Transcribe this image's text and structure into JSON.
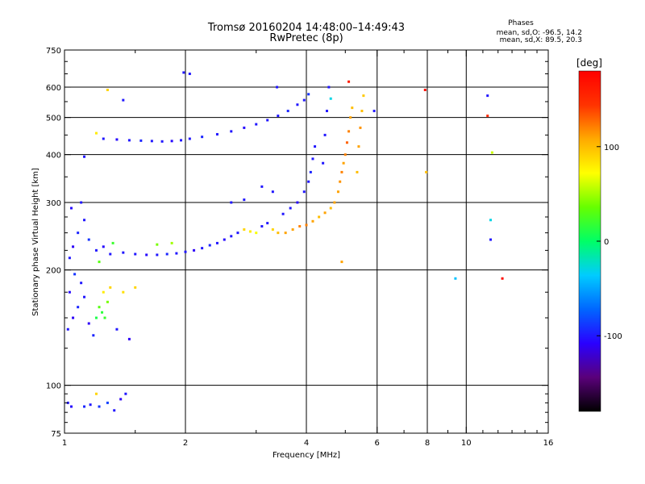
{
  "header": {
    "title": "Tromsø 20160204 14:48:00–14:49:43",
    "subtitle": "RwPretec (8p)",
    "phases_label": "Phases",
    "stats_o": "mean, sd,O: -96.5, 14.2",
    "stats_x": "mean, sd,X: 89.5, 20.3"
  },
  "colorbar": {
    "unit_label": "[deg]",
    "ticks": [
      {
        "value": 100,
        "label": "100"
      },
      {
        "value": 0,
        "label": "0"
      },
      {
        "value": -100,
        "label": "-100"
      }
    ],
    "range": [
      -180,
      180
    ],
    "colors": [
      "#000000",
      "#5a007a",
      "#2a00ff",
      "#0066ff",
      "#00ccff",
      "#00ff66",
      "#66ff00",
      "#ffff00",
      "#ffaa00",
      "#ff3300",
      "#ff0000"
    ]
  },
  "chart_data": {
    "type": "scatter",
    "title": "Tromsø 20160204 14:48:00–14:49:43",
    "subtitle": "RwPretec (8p)",
    "xlabel": "Frequency [MHz]",
    "ylabel": "Stationary phase Virtual Height [km]",
    "xscale": "log2",
    "yscale": "log",
    "xlim": [
      1,
      16
    ],
    "ylim": [
      75,
      750
    ],
    "xticks": [
      {
        "value": 1,
        "label": "1"
      },
      {
        "value": 2,
        "label": "2"
      },
      {
        "value": 4,
        "label": "4"
      },
      {
        "value": 6,
        "label": "6"
      },
      {
        "value": 8,
        "label": "8"
      },
      {
        "value": 10,
        "label": "10"
      },
      {
        "value": 16,
        "label": "16"
      }
    ],
    "xminor": [
      1.5,
      3,
      5,
      7,
      9,
      11,
      12,
      13,
      14,
      15
    ],
    "xgrid": [
      2,
      4,
      6,
      8,
      10
    ],
    "yticks": [
      {
        "value": 75,
        "label": "75"
      },
      {
        "value": 100,
        "label": "100"
      },
      {
        "value": 200,
        "label": "200"
      },
      {
        "value": 300,
        "label": "300"
      },
      {
        "value": 400,
        "label": "400"
      },
      {
        "value": 500,
        "label": "500"
      },
      {
        "value": 600,
        "label": "600"
      },
      {
        "value": 750,
        "label": "750"
      }
    ],
    "yminor": [
      80,
      85,
      90,
      95,
      125,
      150,
      175,
      225,
      250,
      275,
      350,
      450,
      550,
      650,
      700
    ],
    "ygrid": [
      100,
      200,
      300,
      400,
      500,
      600
    ],
    "grid": true,
    "color_scale": "phase [deg]",
    "series": [
      {
        "points": [
          {
            "f": 1.02,
            "h": 90,
            "p": -100
          },
          {
            "f": 1.04,
            "h": 88,
            "p": -105
          },
          {
            "f": 1.12,
            "h": 88,
            "p": -95
          },
          {
            "f": 1.16,
            "h": 89,
            "p": -100
          },
          {
            "f": 1.22,
            "h": 88,
            "p": -90
          },
          {
            "f": 1.28,
            "h": 90,
            "p": -85
          },
          {
            "f": 1.38,
            "h": 92,
            "p": -110
          },
          {
            "f": 1.33,
            "h": 86,
            "p": -100
          },
          {
            "f": 1.02,
            "h": 140,
            "p": -100
          },
          {
            "f": 1.05,
            "h": 150,
            "p": -110
          },
          {
            "f": 1.08,
            "h": 160,
            "p": -95
          },
          {
            "f": 1.03,
            "h": 175,
            "p": -105
          },
          {
            "f": 1.1,
            "h": 185,
            "p": -100
          },
          {
            "f": 1.06,
            "h": 195,
            "p": -90
          },
          {
            "f": 1.12,
            "h": 170,
            "p": -100
          },
          {
            "f": 1.15,
            "h": 145,
            "p": -110
          },
          {
            "f": 1.18,
            "h": 135,
            "p": -95
          },
          {
            "f": 1.2,
            "h": 150,
            "p": 10
          },
          {
            "f": 1.22,
            "h": 160,
            "p": 30
          },
          {
            "f": 1.24,
            "h": 155,
            "p": 15
          },
          {
            "f": 1.26,
            "h": 150,
            "p": 20
          },
          {
            "f": 1.28,
            "h": 165,
            "p": 40
          },
          {
            "f": 1.25,
            "h": 175,
            "p": 80
          },
          {
            "f": 1.3,
            "h": 180,
            "p": 90
          },
          {
            "f": 1.35,
            "h": 140,
            "p": -100
          },
          {
            "f": 1.4,
            "h": 175,
            "p": 85
          },
          {
            "f": 1.45,
            "h": 132,
            "p": -110
          },
          {
            "f": 1.5,
            "h": 180,
            "p": 90
          },
          {
            "f": 1.03,
            "h": 215,
            "p": -100
          },
          {
            "f": 1.05,
            "h": 230,
            "p": -110
          },
          {
            "f": 1.08,
            "h": 250,
            "p": -95
          },
          {
            "f": 1.12,
            "h": 270,
            "p": -100
          },
          {
            "f": 1.04,
            "h": 290,
            "p": -105
          },
          {
            "f": 1.1,
            "h": 300,
            "p": -100
          },
          {
            "f": 1.15,
            "h": 240,
            "p": -90
          },
          {
            "f": 1.2,
            "h": 225,
            "p": -100
          },
          {
            "f": 1.25,
            "h": 230,
            "p": -105
          },
          {
            "f": 1.3,
            "h": 220,
            "p": -100
          },
          {
            "f": 1.22,
            "h": 210,
            "p": 30
          },
          {
            "f": 1.32,
            "h": 235,
            "p": 20
          },
          {
            "f": 1.4,
            "h": 222,
            "p": -100
          },
          {
            "f": 1.5,
            "h": 220,
            "p": -100
          },
          {
            "f": 1.6,
            "h": 219,
            "p": -105
          },
          {
            "f": 1.7,
            "h": 219,
            "p": -100
          },
          {
            "f": 1.8,
            "h": 220,
            "p": -95
          },
          {
            "f": 1.9,
            "h": 221,
            "p": -100
          },
          {
            "f": 2.0,
            "h": 223,
            "p": -100
          },
          {
            "f": 2.1,
            "h": 225,
            "p": -110
          },
          {
            "f": 2.2,
            "h": 228,
            "p": -100
          },
          {
            "f": 2.3,
            "h": 232,
            "p": -95
          },
          {
            "f": 2.4,
            "h": 235,
            "p": -100
          },
          {
            "f": 2.5,
            "h": 240,
            "p": -105
          },
          {
            "f": 1.7,
            "h": 233,
            "p": 40
          },
          {
            "f": 1.85,
            "h": 235,
            "p": 50
          },
          {
            "f": 2.6,
            "h": 245,
            "p": -100
          },
          {
            "f": 2.7,
            "h": 250,
            "p": -100
          },
          {
            "f": 2.8,
            "h": 255,
            "p": 90
          },
          {
            "f": 2.9,
            "h": 252,
            "p": 80
          },
          {
            "f": 3.0,
            "h": 250,
            "p": 70
          },
          {
            "f": 3.1,
            "h": 260,
            "p": -100
          },
          {
            "f": 3.2,
            "h": 265,
            "p": -100
          },
          {
            "f": 3.3,
            "h": 255,
            "p": 90
          },
          {
            "f": 3.4,
            "h": 250,
            "p": 100
          },
          {
            "f": 3.55,
            "h": 250,
            "p": 110
          },
          {
            "f": 3.7,
            "h": 255,
            "p": 110
          },
          {
            "f": 3.85,
            "h": 260,
            "p": 120
          },
          {
            "f": 4.0,
            "h": 262,
            "p": 120
          },
          {
            "f": 4.15,
            "h": 268,
            "p": 110
          },
          {
            "f": 4.3,
            "h": 275,
            "p": 100
          },
          {
            "f": 4.45,
            "h": 282,
            "p": 110
          },
          {
            "f": 4.6,
            "h": 290,
            "p": 100
          },
          {
            "f": 4.7,
            "h": 300,
            "p": 110
          },
          {
            "f": 3.5,
            "h": 280,
            "p": -100
          },
          {
            "f": 3.65,
            "h": 290,
            "p": -100
          },
          {
            "f": 3.8,
            "h": 300,
            "p": -105
          },
          {
            "f": 3.95,
            "h": 320,
            "p": -100
          },
          {
            "f": 4.05,
            "h": 340,
            "p": -100
          },
          {
            "f": 4.1,
            "h": 360,
            "p": -95
          },
          {
            "f": 4.15,
            "h": 390,
            "p": -100
          },
          {
            "f": 4.2,
            "h": 420,
            "p": -100
          },
          {
            "f": 3.3,
            "h": 320,
            "p": -100
          },
          {
            "f": 3.1,
            "h": 330,
            "p": -100
          },
          {
            "f": 2.8,
            "h": 305,
            "p": -100
          },
          {
            "f": 2.6,
            "h": 300,
            "p": -100
          },
          {
            "f": 4.8,
            "h": 320,
            "p": 110
          },
          {
            "f": 4.85,
            "h": 340,
            "p": 115
          },
          {
            "f": 4.9,
            "h": 360,
            "p": 120
          },
          {
            "f": 4.95,
            "h": 380,
            "p": 110
          },
          {
            "f": 5.0,
            "h": 400,
            "p": 120
          },
          {
            "f": 5.05,
            "h": 430,
            "p": 130
          },
          {
            "f": 5.1,
            "h": 460,
            "p": 120
          },
          {
            "f": 5.15,
            "h": 500,
            "p": 110
          },
          {
            "f": 5.2,
            "h": 530,
            "p": 100
          },
          {
            "f": 5.35,
            "h": 360,
            "p": 100
          },
          {
            "f": 5.4,
            "h": 420,
            "p": 110
          },
          {
            "f": 5.45,
            "h": 470,
            "p": 115
          },
          {
            "f": 5.5,
            "h": 520,
            "p": 100
          },
          {
            "f": 5.55,
            "h": 570,
            "p": 95
          },
          {
            "f": 4.4,
            "h": 380,
            "p": -100
          },
          {
            "f": 4.45,
            "h": 450,
            "p": -100
          },
          {
            "f": 4.5,
            "h": 520,
            "p": -100
          },
          {
            "f": 4.55,
            "h": 600,
            "p": -100
          },
          {
            "f": 4.6,
            "h": 560,
            "p": -30
          },
          {
            "f": 1.25,
            "h": 440,
            "p": -100
          },
          {
            "f": 1.35,
            "h": 438,
            "p": -105
          },
          {
            "f": 1.45,
            "h": 436,
            "p": -100
          },
          {
            "f": 1.55,
            "h": 435,
            "p": -95
          },
          {
            "f": 1.65,
            "h": 434,
            "p": -100
          },
          {
            "f": 1.75,
            "h": 433,
            "p": -100
          },
          {
            "f": 1.85,
            "h": 434,
            "p": -105
          },
          {
            "f": 1.95,
            "h": 436,
            "p": -100
          },
          {
            "f": 2.05,
            "h": 440,
            "p": -100
          },
          {
            "f": 2.2,
            "h": 445,
            "p": -95
          },
          {
            "f": 2.4,
            "h": 452,
            "p": -100
          },
          {
            "f": 2.6,
            "h": 460,
            "p": -100
          },
          {
            "f": 2.8,
            "h": 470,
            "p": -105
          },
          {
            "f": 3.0,
            "h": 480,
            "p": -100
          },
          {
            "f": 3.2,
            "h": 492,
            "p": -100
          },
          {
            "f": 3.4,
            "h": 505,
            "p": -100
          },
          {
            "f": 3.6,
            "h": 520,
            "p": -95
          },
          {
            "f": 3.8,
            "h": 540,
            "p": -100
          },
          {
            "f": 3.95,
            "h": 555,
            "p": -100
          },
          {
            "f": 4.05,
            "h": 575,
            "p": -90
          },
          {
            "f": 1.2,
            "h": 455,
            "p": 80
          },
          {
            "f": 1.28,
            "h": 590,
            "p": 90
          },
          {
            "f": 1.12,
            "h": 395,
            "p": -100
          },
          {
            "f": 1.4,
            "h": 555,
            "p": -100
          },
          {
            "f": 1.98,
            "h": 655,
            "p": -100
          },
          {
            "f": 2.05,
            "h": 650,
            "p": -100
          },
          {
            "f": 3.38,
            "h": 600,
            "p": -100
          },
          {
            "f": 5.9,
            "h": 520,
            "p": -100
          },
          {
            "f": 5.1,
            "h": 620,
            "p": 160
          },
          {
            "f": 4.9,
            "h": 210,
            "p": 110
          },
          {
            "f": 7.9,
            "h": 590,
            "p": 170
          },
          {
            "f": 7.95,
            "h": 360,
            "p": 100
          },
          {
            "f": 9.4,
            "h": 190,
            "p": -40
          },
          {
            "f": 11.3,
            "h": 570,
            "p": -100
          },
          {
            "f": 11.3,
            "h": 505,
            "p": 150
          },
          {
            "f": 11.6,
            "h": 405,
            "p": 60
          },
          {
            "f": 11.5,
            "h": 270,
            "p": -30
          },
          {
            "f": 11.5,
            "h": 240,
            "p": -100
          },
          {
            "f": 12.3,
            "h": 190,
            "p": 175
          },
          {
            "f": 1.2,
            "h": 95,
            "p": 90
          },
          {
            "f": 1.42,
            "h": 95,
            "p": -100
          }
        ]
      }
    ]
  }
}
